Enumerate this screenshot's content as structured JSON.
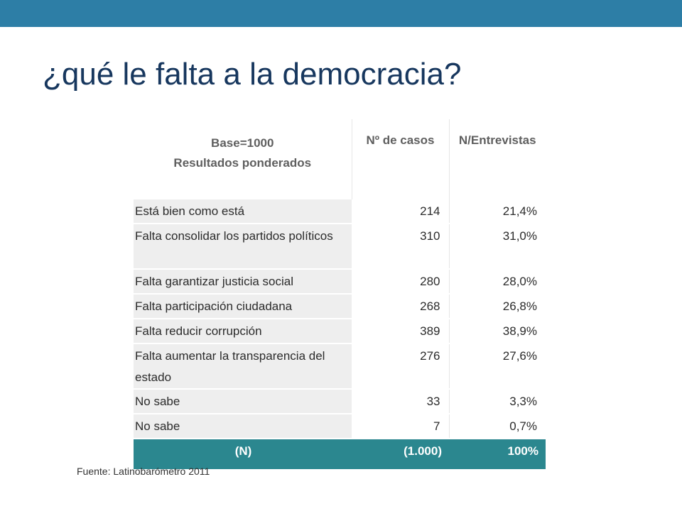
{
  "title": "¿qué le falta a la democracia?",
  "table": {
    "header": {
      "base_line1": "Base=1000",
      "base_line2": "Resultados ponderados",
      "col_cases": "Nº de casos",
      "col_pct": "N/Entrevistas"
    },
    "rows": [
      {
        "label": "Está bien como está",
        "cases": "214",
        "pct": "21,4%"
      },
      {
        "label": "Falta consolidar los partidos políticos",
        "cases": "310",
        "pct": "31,0%"
      },
      {
        "label": "Falta garantizar justicia social",
        "cases": "280",
        "pct": "28,0%"
      },
      {
        "label": "Falta participación ciudadana",
        "cases": "268",
        "pct": "26,8%"
      },
      {
        "label": "Falta reducir corrupción",
        "cases": "389",
        "pct": "38,9%"
      },
      {
        "label": "Falta aumentar la transparencia del estado",
        "cases": "276",
        "pct": "27,6%"
      },
      {
        "label": "No sabe",
        "cases": "33",
        "pct": "3,3%"
      },
      {
        "label": "No sabe",
        "cases": "7",
        "pct": "0,7%"
      }
    ],
    "total": {
      "label": "(N)",
      "cases": "(1.000)",
      "pct": "100%"
    }
  },
  "source": "Fuente: Latinobarómetro 2011",
  "colors": {
    "top_bar": "#2d7ea6",
    "title": "#17375e",
    "total_row": "#2b878f",
    "label_cell": "#eeeeee"
  }
}
